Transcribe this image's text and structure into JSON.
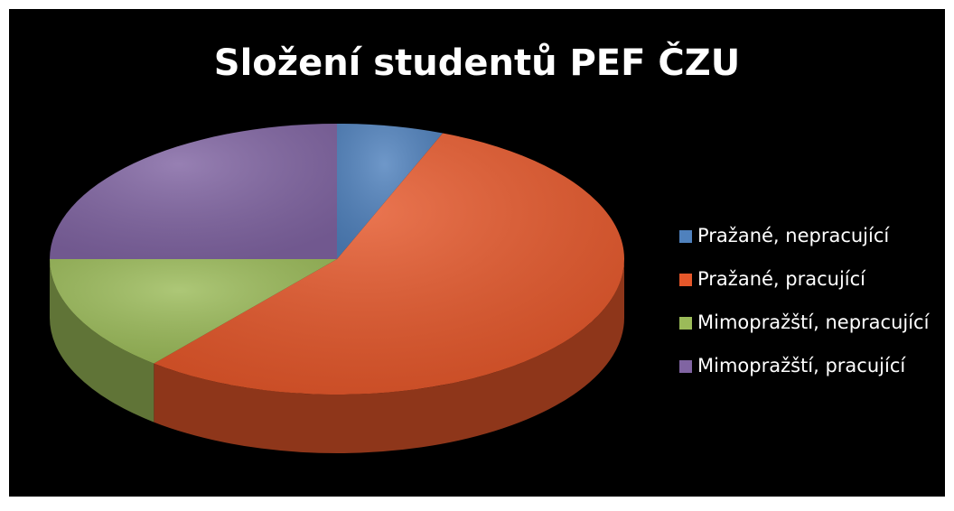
{
  "chart_data": {
    "type": "pie3d",
    "title": "Složení studentů PEF ČZU",
    "categories": [
      "Pražané, nepracující",
      "Pražané, pracující",
      "Mimopražští, nepracující",
      "Mimopražští, pracující"
    ],
    "values": [
      6,
      55,
      14,
      25
    ],
    "colors": [
      "#4f81bd",
      "#e5572a",
      "#9bbb59",
      "#8064a2"
    ],
    "legend": "right"
  }
}
